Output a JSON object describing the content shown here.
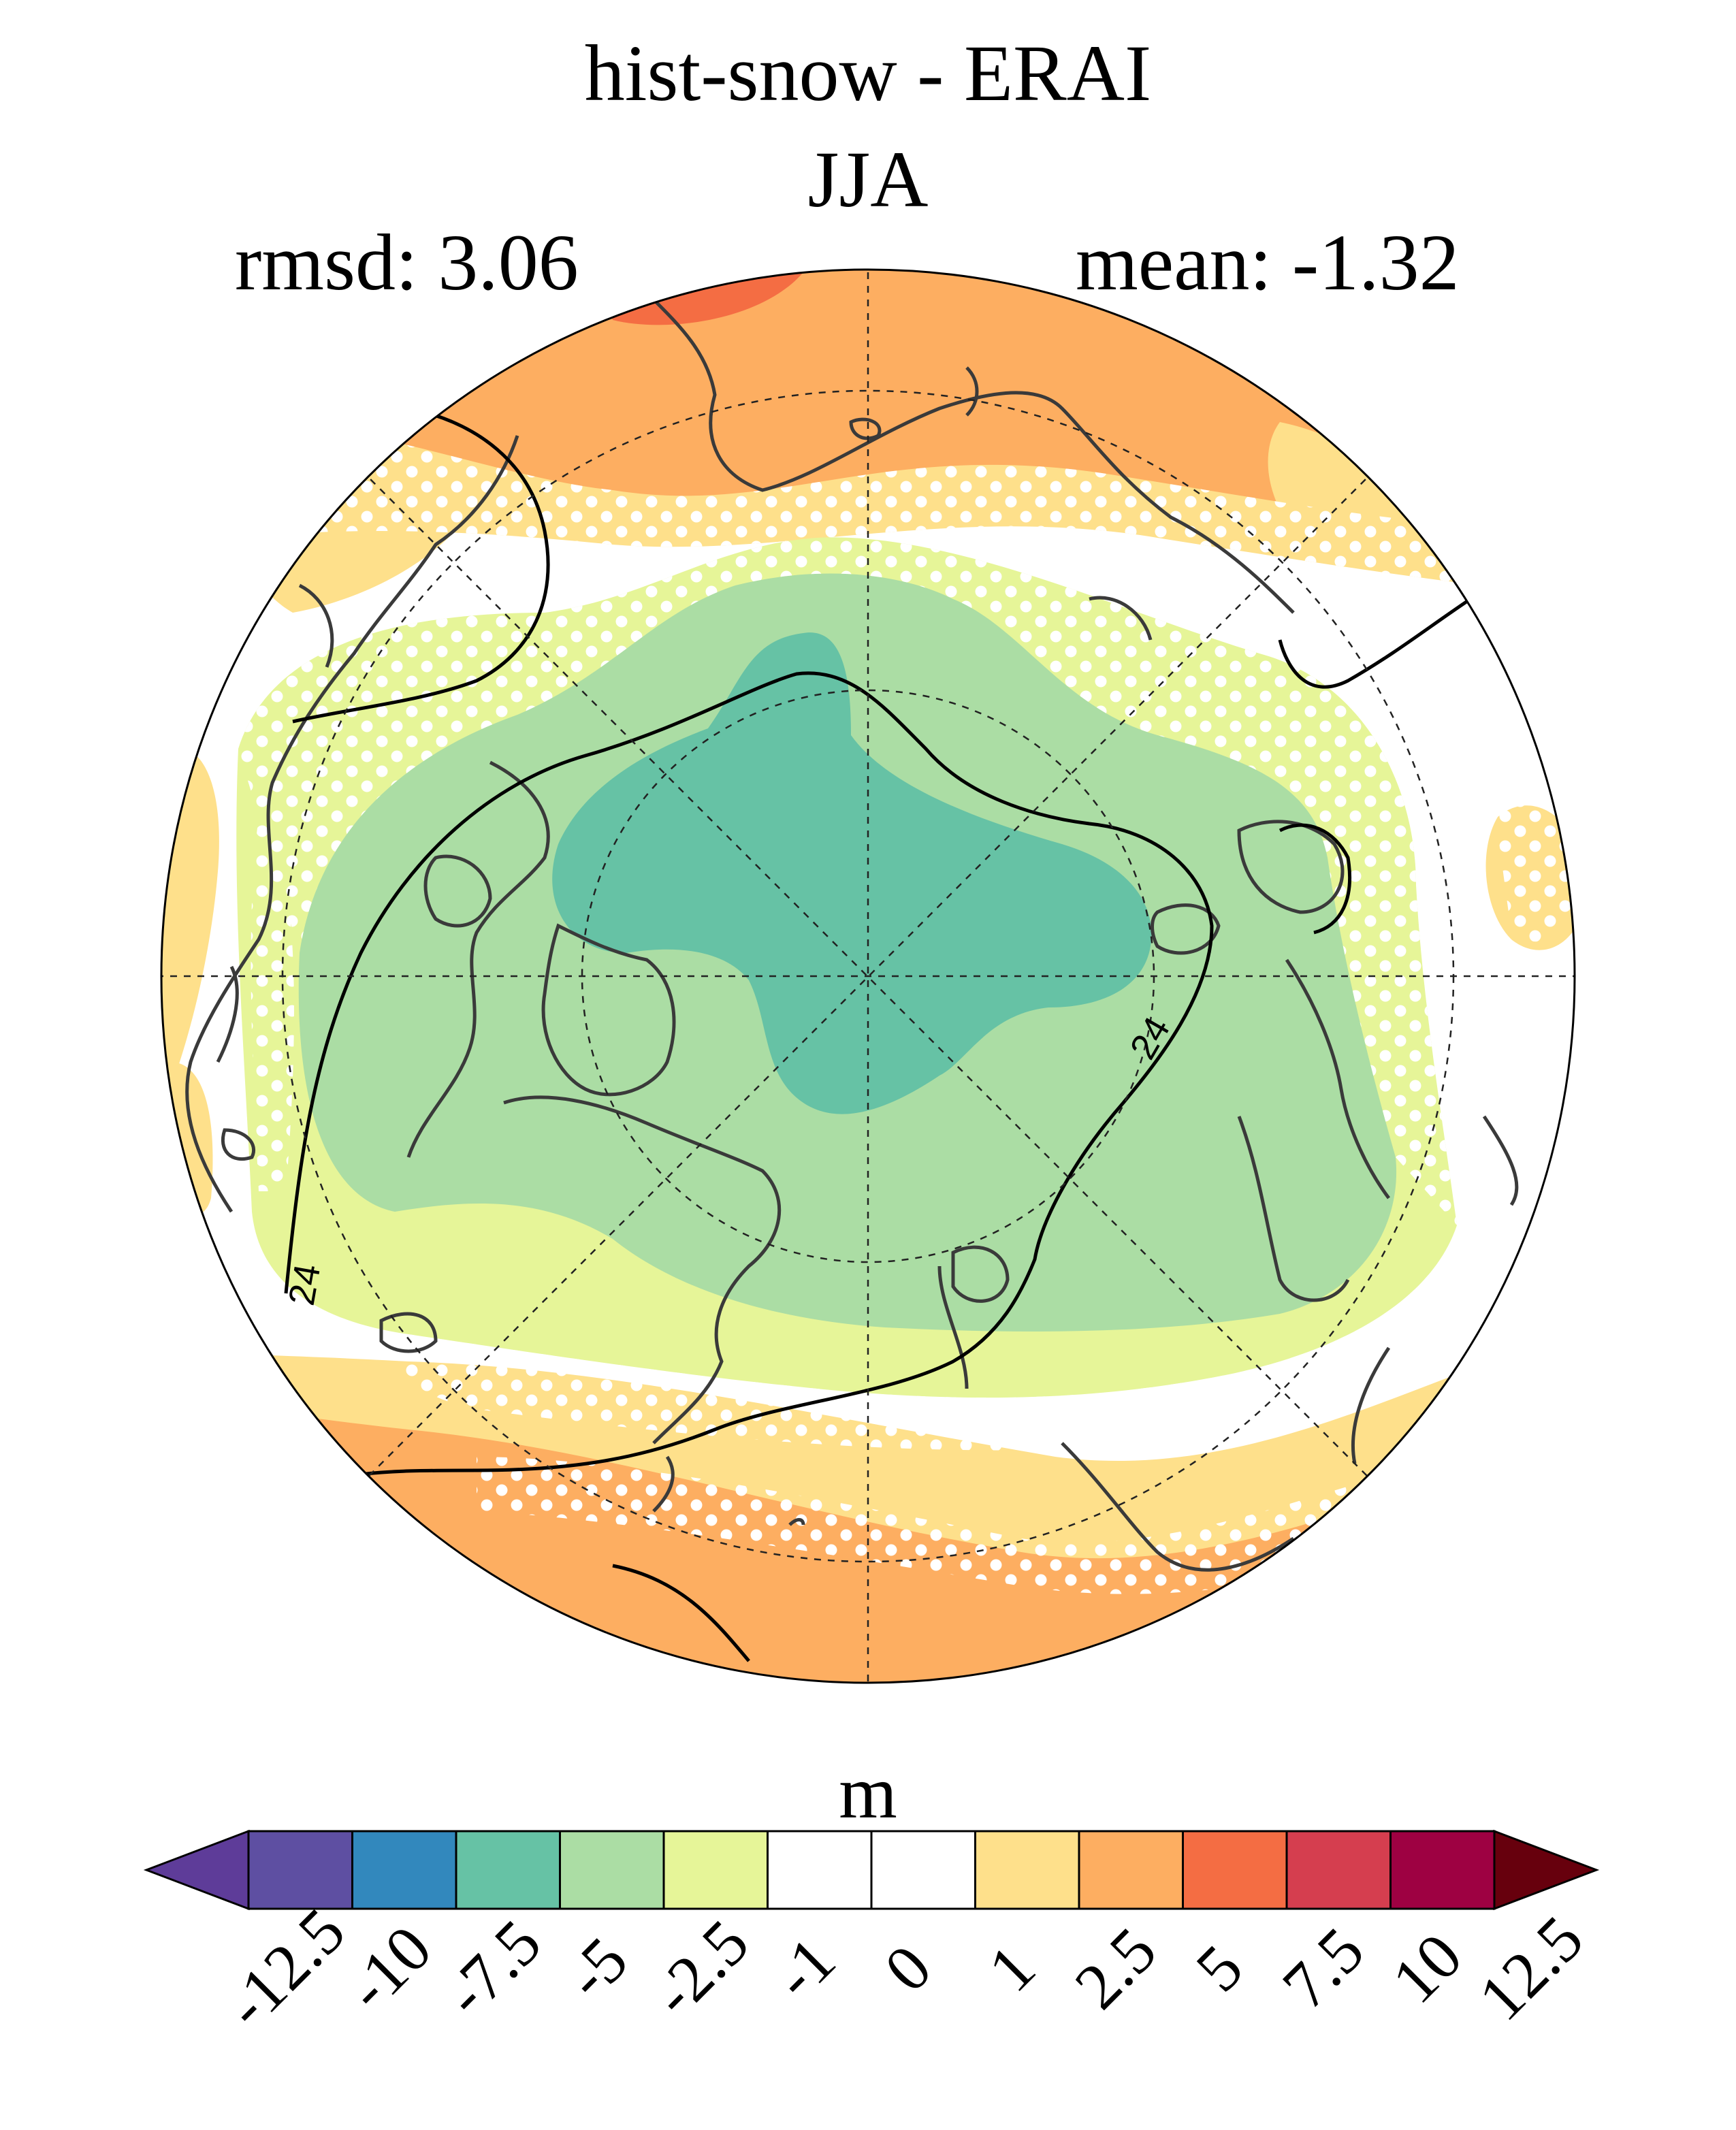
{
  "title": "hist-snow - ERAI",
  "season": "JJA",
  "rmsd_label": "rmsd: 3.06",
  "mean_label": "mean: -1.32",
  "contour_labels": [
    "24",
    "24"
  ],
  "colorbar": {
    "unit": "m",
    "ticks": [
      "-12.5",
      "-10",
      "-7.5",
      "-5",
      "-2.5",
      "-1",
      "0",
      "1",
      "2.5",
      "5",
      "7.5",
      "10",
      "12.5"
    ],
    "colors": [
      "#5e3c99",
      "#5e4fa2",
      "#3288bd",
      "#66c2a5",
      "#abdda4",
      "#e6f598",
      "#ffffff",
      "#ffffff",
      "#fee08b",
      "#fdae61",
      "#f46d43",
      "#d53e4f",
      "#9e0142",
      "#67000d"
    ]
  },
  "map": {
    "projection": "north polar stereographic",
    "field": "hist-snow minus ERAI difference",
    "stippling": "white dots mark non-significant areas"
  }
}
